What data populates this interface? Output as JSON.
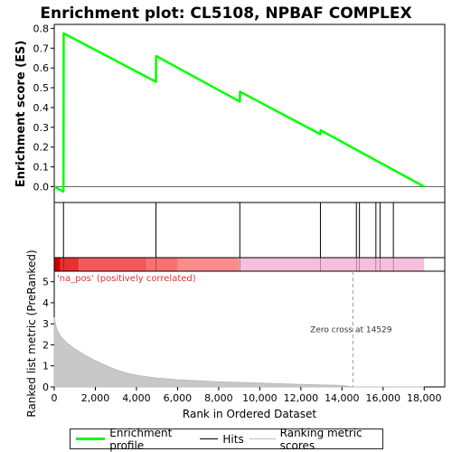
{
  "chart_data": {
    "type": "line",
    "title": "Enrichment plot: CL5108, NPBAF COMPLEX",
    "xlabel": "Rank in Ordered Dataset",
    "ylabel_top": "Enrichment score (ES)",
    "ylabel_bottom": "Ranked list metric (PreRanked)",
    "xlim": [
      0,
      19000
    ],
    "x_ticks": [
      0,
      2000,
      4000,
      6000,
      8000,
      10000,
      12000,
      14000,
      16000,
      18000
    ],
    "x_tick_labels": [
      "0",
      "2,000",
      "4,000",
      "6,000",
      "8,000",
      "10,000",
      "12,000",
      "14,000",
      "16,000",
      "18,000"
    ],
    "es_ylim": [
      -0.08,
      0.82
    ],
    "es_ticks": [
      0.0,
      0.1,
      0.2,
      0.3,
      0.4,
      0.5,
      0.6,
      0.7,
      0.8
    ],
    "es_tick_labels": [
      "0.0",
      "0.1",
      "0.2",
      "0.3",
      "0.4",
      "0.5",
      "0.6",
      "0.7",
      "0.8"
    ],
    "metric_ylim": [
      0,
      5.5
    ],
    "metric_ticks": [
      0,
      1,
      2,
      3,
      4,
      5
    ],
    "metric_tick_labels": [
      "0",
      "1",
      "2",
      "3",
      "4",
      "5"
    ],
    "series": [
      {
        "name": "Enrichment profile",
        "color": "#00ff00",
        "points": [
          [
            0,
            0.0
          ],
          [
            450,
            -0.025
          ],
          [
            460,
            0.775
          ],
          [
            4950,
            0.53
          ],
          [
            4960,
            0.66
          ],
          [
            9030,
            0.43
          ],
          [
            9040,
            0.48
          ],
          [
            12950,
            0.265
          ],
          [
            12960,
            0.285
          ],
          [
            18000,
            0.0
          ]
        ]
      },
      {
        "name": "Ranking metric scores",
        "color": "#bbbbbb",
        "points": [
          [
            0,
            3.3
          ],
          [
            100,
            2.8
          ],
          [
            300,
            2.4
          ],
          [
            600,
            2.1
          ],
          [
            1000,
            1.8
          ],
          [
            1500,
            1.5
          ],
          [
            2000,
            1.25
          ],
          [
            2500,
            1.02
          ],
          [
            3000,
            0.82
          ],
          [
            3500,
            0.66
          ],
          [
            4000,
            0.55
          ],
          [
            5000,
            0.42
          ],
          [
            6000,
            0.34
          ],
          [
            8000,
            0.24
          ],
          [
            10000,
            0.18
          ],
          [
            12000,
            0.12
          ],
          [
            14000,
            0.07
          ],
          [
            14529,
            0.0
          ],
          [
            18000,
            0.0
          ]
        ]
      }
    ],
    "hits": [
      450,
      4950,
      9030,
      12950,
      14700,
      14850,
      15650,
      15850,
      16500
    ],
    "hits_label": "Hits",
    "heatmap_segments": [
      {
        "x0": 0,
        "x1": 300,
        "color": "#cc0000"
      },
      {
        "x0": 300,
        "x1": 1200,
        "color": "#e83030"
      },
      {
        "x0": 1200,
        "x1": 4500,
        "color": "#f25a5a"
      },
      {
        "x0": 4500,
        "x1": 6000,
        "color": "#f87070"
      },
      {
        "x0": 6000,
        "x1": 9000,
        "color": "#fc8c8c"
      },
      {
        "x0": 9000,
        "x1": 18000,
        "color": "#f8bedd"
      }
    ],
    "annotations": {
      "positive_label": "'na_pos' (positively correlated)",
      "zero_cross_label": "Zero cross at 14529",
      "zero_cross_x": 14529
    },
    "legend_position": "bottom"
  }
}
